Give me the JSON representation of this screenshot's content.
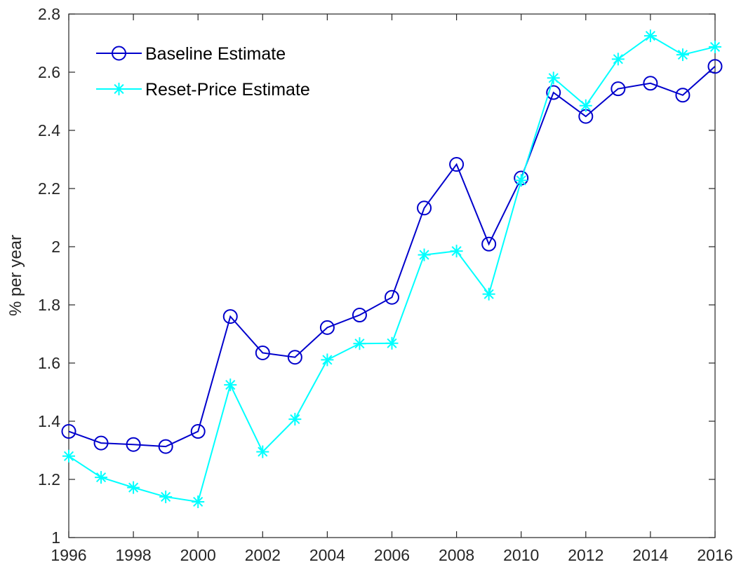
{
  "chart_data": {
    "type": "line",
    "title": "",
    "xlabel": "",
    "ylabel": "% per year",
    "xlim": [
      1996,
      2016
    ],
    "ylim": [
      1,
      2.8
    ],
    "x_ticks": [
      "1996",
      "1998",
      "2000",
      "2002",
      "2004",
      "2006",
      "2008",
      "2010",
      "2012",
      "2014",
      "2016"
    ],
    "y_ticks": [
      "1",
      "1.2",
      "1.4",
      "1.6",
      "1.8",
      "2",
      "2.2",
      "2.4",
      "2.6",
      "2.8"
    ],
    "grid": false,
    "legend_position": "top-left",
    "x": [
      1996,
      1997,
      1998,
      1999,
      2000,
      2001,
      2002,
      2003,
      2004,
      2005,
      2006,
      2007,
      2008,
      2009,
      2010,
      2011,
      2012,
      2013,
      2014,
      2015,
      2016
    ],
    "series": [
      {
        "name": "Baseline Estimate",
        "color": "#0000cc",
        "marker": "circle",
        "values": [
          1.365,
          1.325,
          1.32,
          1.313,
          1.365,
          1.76,
          1.635,
          1.62,
          1.722,
          1.765,
          1.826,
          2.133,
          2.283,
          2.009,
          2.236,
          2.53,
          2.448,
          2.543,
          2.562,
          2.521,
          2.62
        ]
      },
      {
        "name": "Reset-Price Estimate",
        "color": "#00ffff",
        "marker": "asterisk",
        "values": [
          1.28,
          1.207,
          1.172,
          1.14,
          1.123,
          1.525,
          1.295,
          1.407,
          1.611,
          1.667,
          1.668,
          1.972,
          1.985,
          1.837,
          2.228,
          2.58,
          2.485,
          2.645,
          2.725,
          2.66,
          2.687
        ]
      }
    ]
  }
}
